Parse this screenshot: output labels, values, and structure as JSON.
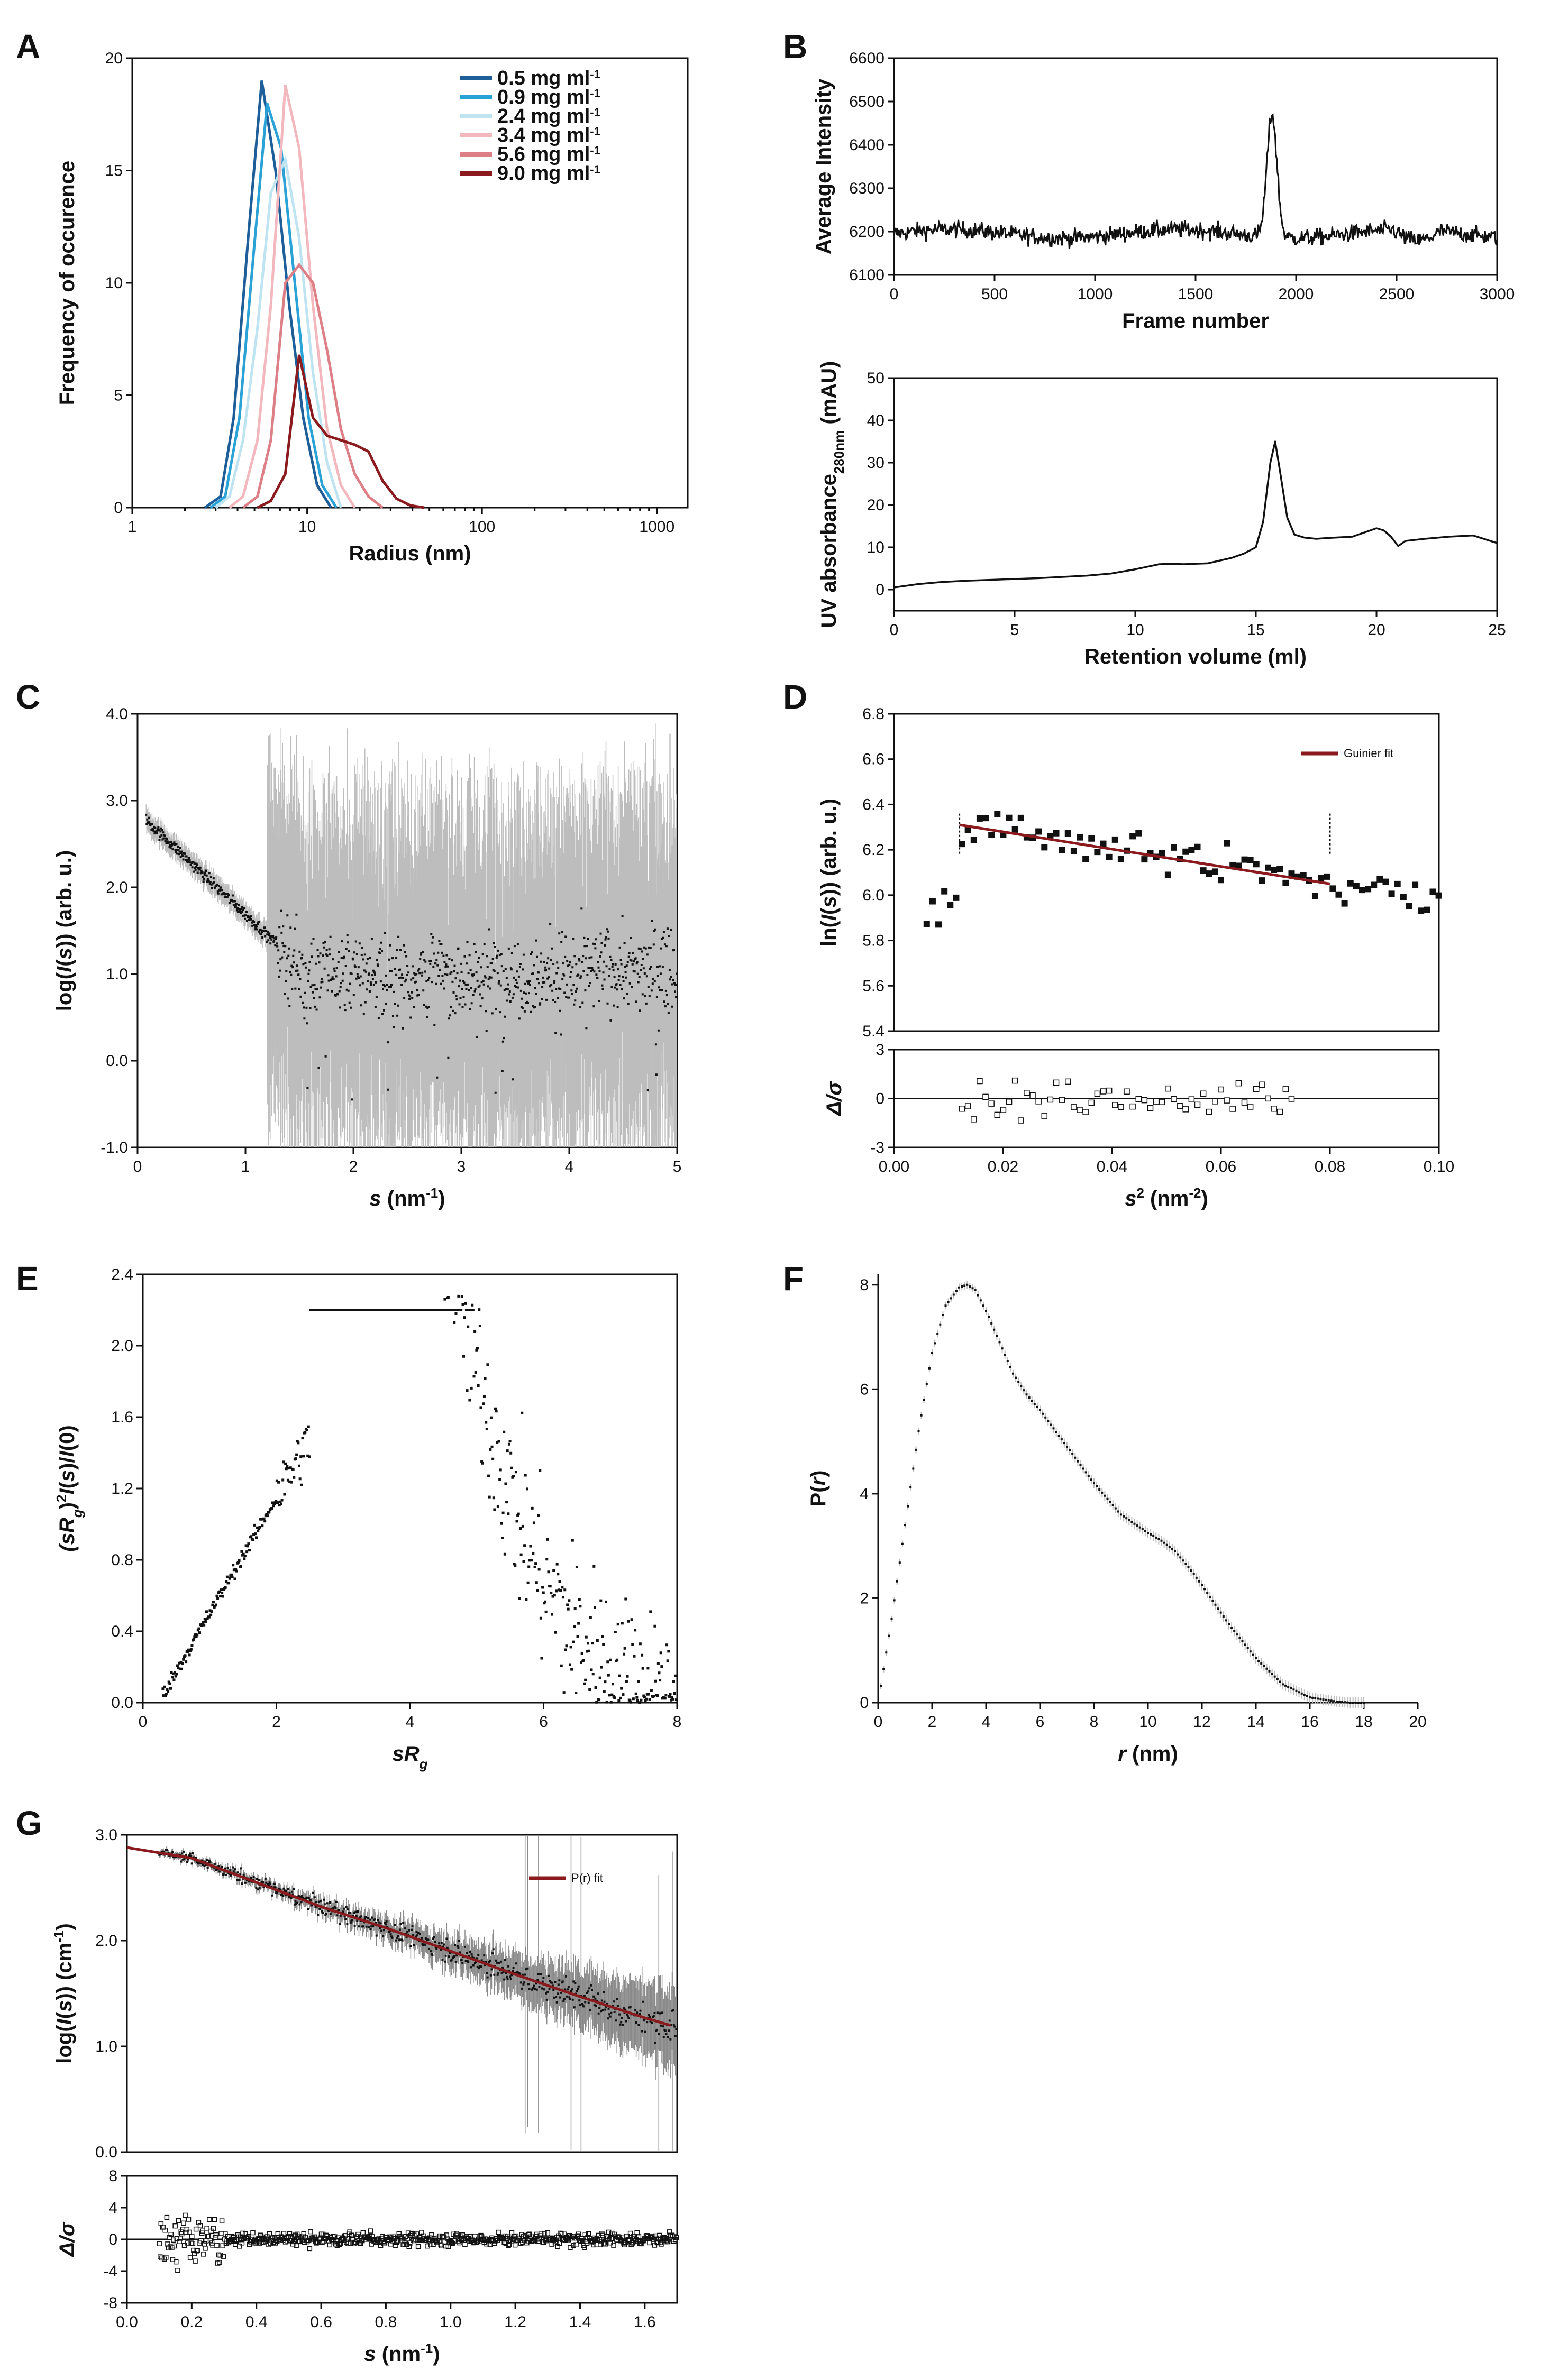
{
  "panel_labels": [
    "A",
    "B",
    "C",
    "D",
    "E",
    "F",
    "G"
  ],
  "colors": {
    "c05": "#1f5f99",
    "c09": "#2aa2d6",
    "c24": "#bfe4f1",
    "c34": "#f2b8bd",
    "c56": "#dc7f86",
    "c90": "#8b1a1e",
    "fit": "#8b1a1e",
    "data": "#111111",
    "err": "#bdbdbd"
  },
  "chart_data": [
    {
      "id": "A",
      "type": "line",
      "xlabel": "Radius (nm)",
      "ylabel": "Frequency of occurence",
      "xscale": "log",
      "xlim": [
        1,
        1500
      ],
      "ylim": [
        0,
        20
      ],
      "xticks": [
        1,
        10,
        100,
        1000
      ],
      "yticks": [
        0,
        5,
        10,
        15,
        20
      ],
      "series": [
        {
          "name": "0.5 mg ml",
          "unit_sup": "-1",
          "color_key": "c05",
          "x": [
            2.6,
            3.2,
            3.8,
            4.6,
            5.5,
            6.6,
            7.9,
            9.5,
            11.4,
            13.7
          ],
          "y": [
            0,
            0.5,
            4,
            12,
            19,
            15,
            9,
            4,
            1,
            0
          ]
        },
        {
          "name": "0.9 mg ml",
          "unit_sup": "-1",
          "color_key": "c09",
          "x": [
            2.8,
            3.4,
            4.1,
            4.9,
            5.9,
            7.1,
            8.5,
            10.2,
            12.2,
            14.7
          ],
          "y": [
            0,
            0.5,
            4,
            11,
            18,
            16,
            10,
            4,
            1,
            0
          ]
        },
        {
          "name": "2.4 mg ml",
          "unit_sup": "-1",
          "color_key": "c24",
          "x": [
            3.0,
            3.6,
            4.3,
            5.2,
            6.2,
            7.5,
            9.0,
            10.8,
            13.0,
            15.6
          ],
          "y": [
            0,
            0.5,
            3,
            8,
            14,
            15.5,
            12,
            6,
            2,
            0
          ]
        },
        {
          "name": "3.4 mg ml",
          "unit_sup": "-1",
          "color_key": "c34",
          "x": [
            3.6,
            4.3,
            5.2,
            6.2,
            7.5,
            9.0,
            10.8,
            13.0,
            15.6,
            18.7
          ],
          "y": [
            0,
            0.5,
            3,
            9,
            18.8,
            16,
            9,
            3.5,
            1,
            0
          ]
        },
        {
          "name": "5.6 mg ml",
          "unit_sup": "-1",
          "color_key": "c56",
          "x": [
            4.3,
            5.2,
            6.2,
            7.5,
            9.0,
            10.8,
            13.0,
            15.6,
            18.7,
            22.4,
            27.0
          ],
          "y": [
            0,
            0.5,
            3,
            10,
            10.8,
            10,
            7,
            3.5,
            1.5,
            0.5,
            0
          ]
        },
        {
          "name": "9.0 mg ml",
          "unit_sup": "-1",
          "color_key": "c90",
          "x": [
            5.2,
            6.2,
            7.5,
            9.0,
            10.8,
            13.0,
            15.6,
            18.7,
            22.4,
            27.0,
            32.4,
            38.9,
            46.7
          ],
          "y": [
            0,
            0.3,
            1.5,
            6.8,
            4,
            3.2,
            3,
            2.8,
            2.5,
            1.2,
            0.4,
            0.1,
            0
          ]
        }
      ]
    },
    {
      "id": "B1",
      "type": "line",
      "xlabel": "Frame number",
      "ylabel": "Average Intensity",
      "xlim": [
        0,
        3000
      ],
      "ylim": [
        6100,
        6600
      ],
      "xticks": [
        0,
        500,
        1000,
        1500,
        2000,
        2500,
        3000
      ],
      "yticks": [
        6100,
        6200,
        6300,
        6400,
        6500,
        6600
      ],
      "baseline": 6195,
      "noise": 20,
      "peak": {
        "x": 1880,
        "y": 6480,
        "width": 35
      }
    },
    {
      "id": "B2",
      "type": "line",
      "xlabel": "Retention volume (ml)",
      "ylabel": "UV absorbance",
      "ylabel_sub": "280nm",
      "ylabel_unit": "(mAU)",
      "xlim": [
        0,
        25
      ],
      "ylim": [
        -5,
        50
      ],
      "xticks": [
        0,
        5,
        10,
        15,
        20,
        25
      ],
      "yticks": [
        0,
        10,
        20,
        30,
        40,
        50
      ],
      "x": [
        0,
        1,
        2,
        3,
        4,
        5,
        6,
        7,
        8,
        9,
        10,
        11,
        11.5,
        12,
        13,
        14,
        14.5,
        15,
        15.3,
        15.6,
        15.8,
        16,
        16.3,
        16.6,
        17,
        17.5,
        18,
        19,
        19.5,
        20,
        20.3,
        20.6,
        20.9,
        21.2,
        22,
        23,
        24,
        25
      ],
      "y": [
        0.5,
        1.3,
        1.8,
        2.1,
        2.3,
        2.5,
        2.7,
        3,
        3.3,
        3.8,
        4.8,
        6,
        6.1,
        6,
        6.2,
        7.5,
        8.5,
        10,
        16,
        30,
        35,
        28,
        17,
        13,
        12.3,
        12,
        12.2,
        12.5,
        13.5,
        14.5,
        14,
        12.5,
        10.3,
        11.5,
        12,
        12.5,
        12.8,
        11
      ]
    },
    {
      "id": "C",
      "type": "scatter",
      "xlabel": "s (nm",
      "xlabel_sup": "-1",
      "xlabel_close": ")",
      "ylabel": "log(I(s)) (arb. u.)",
      "xlim": [
        0,
        5
      ],
      "ylim": [
        -1,
        4
      ],
      "xticks": [
        0,
        1,
        2,
        3,
        4,
        5
      ],
      "yticks": [
        -1.0,
        0.0,
        1.0,
        2.0,
        3.0,
        4.0
      ],
      "trend": {
        "start": [
          0.1,
          2.75
        ],
        "knee": [
          1.5,
          1.1
        ],
        "plateau": 1.0
      },
      "points": 1000
    },
    {
      "id": "D",
      "type": "scatter",
      "xlabel": "s",
      "xlabel_sup": "2",
      "xlabel_unit": "(nm",
      "xlabel_unit_sup": "-2",
      "xlabel_close": ")",
      "ylabel": "ln(I(s)) (arb. u.)",
      "resid_label": "Δ/σ",
      "xlim": [
        0,
        0.1
      ],
      "ylim": [
        5.4,
        6.8
      ],
      "resid_ylim": [
        -3,
        3
      ],
      "xticks": [
        0.0,
        0.02,
        0.04,
        0.06,
        0.08,
        0.1
      ],
      "yticks": [
        5.4,
        5.6,
        5.8,
        6.0,
        6.2,
        6.4,
        6.6,
        6.8
      ],
      "resid_yticks": [
        -3,
        0,
        3
      ],
      "legend": "Guinier fit",
      "fit": {
        "x": [
          0.012,
          0.08
        ],
        "y": [
          6.31,
          6.05
        ]
      },
      "range_lines": [
        0.012,
        0.08
      ]
    },
    {
      "id": "E",
      "type": "scatter",
      "xlabel": "sR",
      "xlabel_sub": "g",
      "ylabel": "(sR",
      "ylabel_sub": "g",
      "ylabel_sup": "2",
      "ylabel_rest": "I(s)/I(0)",
      "xlim": [
        0,
        8
      ],
      "ylim": [
        0,
        2.4
      ],
      "xticks": [
        0,
        2,
        4,
        6,
        8
      ],
      "yticks": [
        0.0,
        0.4,
        0.8,
        1.2,
        1.6,
        2.0,
        2.4
      ],
      "points": 600
    },
    {
      "id": "F",
      "type": "line",
      "xlabel": "r (nm)",
      "ylabel": "P(r)",
      "xlim": [
        0,
        20
      ],
      "ylim": [
        0,
        8.2
      ],
      "xticks": [
        0,
        2,
        4,
        6,
        8,
        10,
        12,
        14,
        16,
        18,
        20
      ],
      "yticks": [
        0,
        2,
        4,
        6,
        8
      ],
      "x": [
        0,
        0.5,
        1,
        1.5,
        2,
        2.5,
        3,
        3.3,
        3.6,
        4,
        4.5,
        5,
        5.5,
        6,
        7,
        8,
        9,
        10,
        10.5,
        11,
        11.5,
        12,
        13,
        14,
        15,
        16,
        17,
        17.5,
        18
      ],
      "y": [
        0,
        1.6,
        3.4,
        5.2,
        6.7,
        7.6,
        7.95,
        8.0,
        7.9,
        7.5,
        6.9,
        6.3,
        5.9,
        5.6,
        4.9,
        4.2,
        3.6,
        3.25,
        3.1,
        2.9,
        2.6,
        2.25,
        1.5,
        0.85,
        0.35,
        0.1,
        0.02,
        0,
        0
      ]
    },
    {
      "id": "G",
      "type": "scatter",
      "xlabel": "s (nm",
      "xlabel_sup": "-1",
      "xlabel_close": ")",
      "ylabel": "log(I(s)) (cm",
      "ylabel_sup": "-1",
      "ylabel_close": ")",
      "resid_label": "Δ/σ",
      "xlim": [
        0,
        1.7
      ],
      "ylim": [
        0,
        3.0
      ],
      "resid_ylim": [
        -8,
        8
      ],
      "xticks": [
        0.0,
        0.2,
        0.4,
        0.6,
        0.8,
        1.0,
        1.2,
        1.4,
        1.6
      ],
      "yticks": [
        0.0,
        1.0,
        2.0,
        3.0
      ],
      "resid_yticks": [
        -8,
        -4,
        0,
        4,
        8
      ],
      "legend": "P(r) fit",
      "fit": {
        "x": [
          0,
          0.2,
          0.4,
          0.6,
          0.8,
          1.0,
          1.2,
          1.4,
          1.6,
          1.7
        ],
        "y": [
          2.88,
          2.78,
          2.55,
          2.32,
          2.12,
          1.9,
          1.68,
          1.47,
          1.27,
          1.18
        ]
      }
    }
  ]
}
